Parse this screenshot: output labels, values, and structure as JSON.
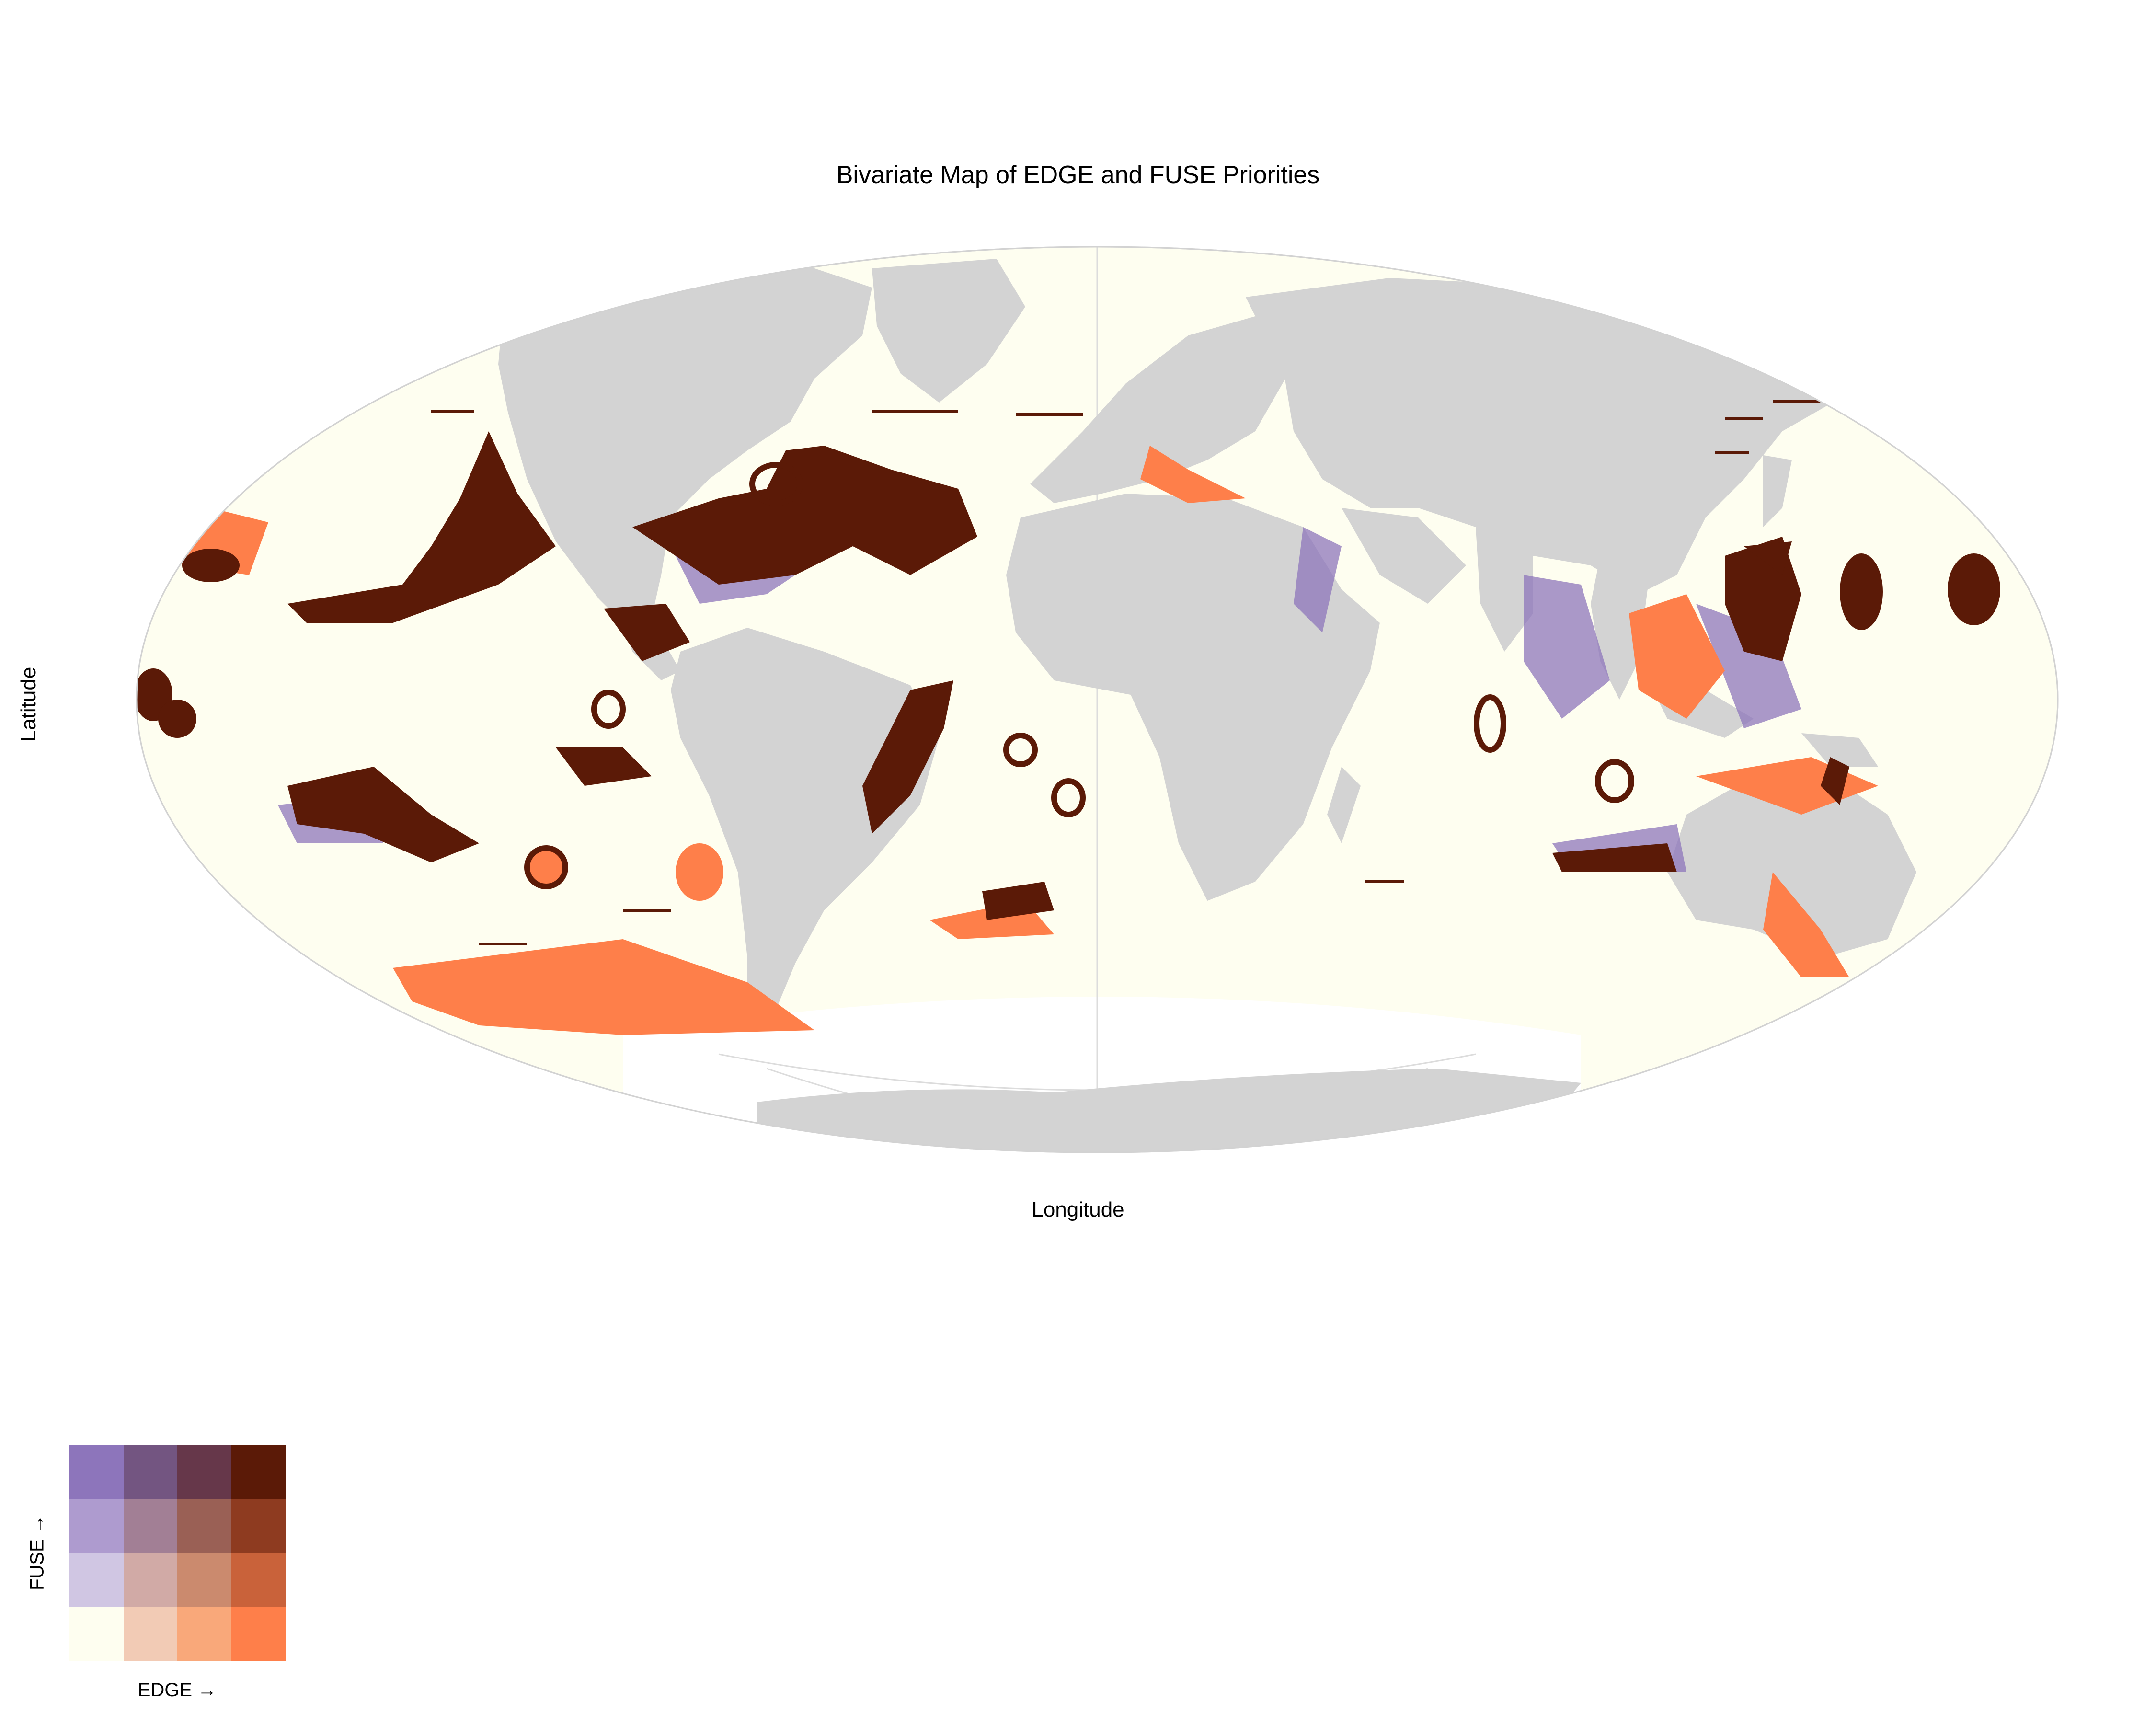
{
  "title": "Bivariate Map of EDGE and FUSE Priorities",
  "axes": {
    "x_label": "Longitude",
    "y_label": "Latitude"
  },
  "legend": {
    "x_label": "EDGE →",
    "y_label": "FUSE →",
    "rows_top_to_bottom": [
      [
        "#8d75bb",
        "#735581",
        "#66374a",
        "#5b1a07"
      ],
      [
        "#ae9bcf",
        "#a27f95",
        "#9a6055",
        "#8e3b20"
      ],
      [
        "#d0c6e3",
        "#d1aaa6",
        "#cb8a6e",
        "#c9623a"
      ],
      [
        "#fefef0",
        "#f2cbb5",
        "#f9a87a",
        "#fe7f4a"
      ]
    ]
  },
  "colors": {
    "ocean": "#fefef0",
    "land": "#d3d3d3",
    "graticule": "#d9d9d9",
    "high_both": "#5b1a07",
    "high_edge": "#fe7f4a",
    "high_fuse": "#8d75bb"
  },
  "projection": "mollweide"
}
